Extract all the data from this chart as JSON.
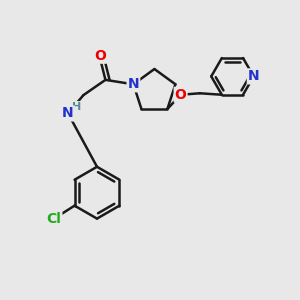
{
  "background_color": "#e8e8e8",
  "bond_color": "#1a1a1a",
  "bond_width": 1.8,
  "atom_colors": {
    "O": "#ee0000",
    "N": "#2233cc",
    "Cl": "#22aa22",
    "H": "#558899",
    "C": "#1a1a1a"
  },
  "font_size_atom": 10,
  "font_size_H": 8,
  "font_size_small": 9,
  "xlim": [
    0,
    10
  ],
  "ylim": [
    0,
    10
  ]
}
